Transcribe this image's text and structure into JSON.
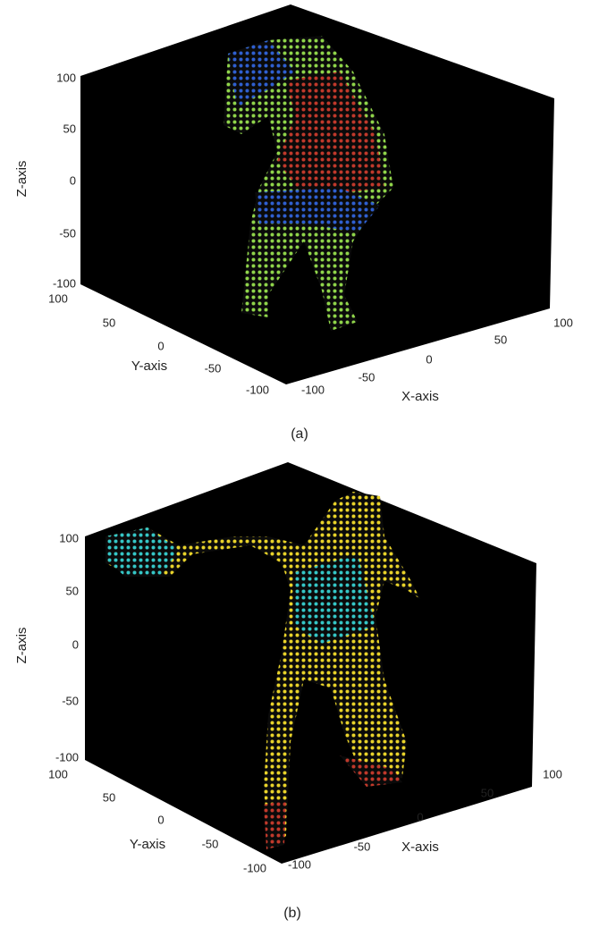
{
  "figures": [
    {
      "z_label": "Z-axis",
      "z_ticks": [
        100,
        50,
        0,
        -50,
        -100
      ],
      "y_label": "Y-axis",
      "y_ticks": [
        100,
        50,
        0,
        -50,
        -100
      ],
      "x_label": "X-axis",
      "x_ticks": [
        -100,
        -50,
        0,
        50,
        100
      ],
      "caption": "(a)"
    },
    {
      "z_label": "Z-axis",
      "z_ticks": [
        100,
        50,
        0,
        -50,
        -100
      ],
      "y_label": "Y-axis",
      "y_ticks": [
        100,
        50,
        0,
        -50,
        -100
      ],
      "x_label": "X-axis",
      "x_ticks": [
        -100,
        -50,
        0,
        50,
        100
      ],
      "caption": "(b)"
    }
  ]
}
